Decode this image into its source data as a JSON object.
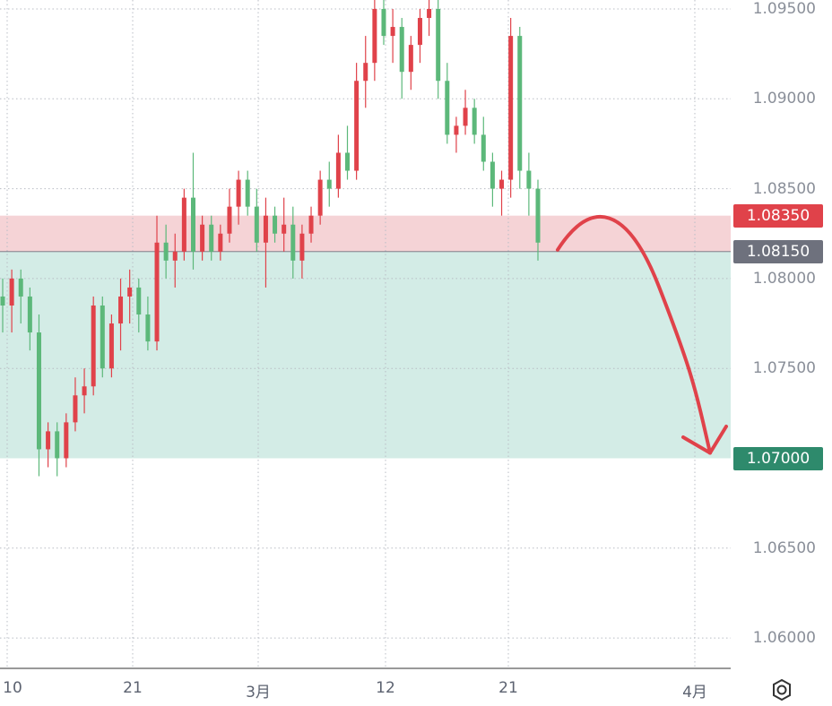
{
  "chart_data": {
    "type": "candlestick",
    "y_axis": {
      "ticks": [
        "1.09500",
        "1.09000",
        "1.08500",
        "1.08000",
        "1.07500",
        "1.06500",
        "1.06000"
      ],
      "tick_values": [
        1.095,
        1.09,
        1.085,
        1.08,
        1.075,
        1.065,
        1.06
      ],
      "range": [
        1.0585,
        1.0962
      ]
    },
    "x_axis": {
      "ticks": [
        "10",
        "21",
        "3月",
        "12",
        "21",
        "4月"
      ]
    },
    "zones": [
      {
        "name": "resistance",
        "from": 1.0815,
        "to": 1.0835,
        "color": "#f5d3d6"
      },
      {
        "name": "target",
        "from": 1.07,
        "to": 1.0815,
        "color": "#d3ece6"
      }
    ],
    "price_labels": [
      {
        "text": "1.08350",
        "value": 1.0835,
        "color": "#e0424a"
      },
      {
        "text": "1.08150",
        "value": 1.0815,
        "color": "#6e717d"
      },
      {
        "text": "1.07000",
        "value": 1.07,
        "color": "#2e8a6c"
      }
    ],
    "candles": [
      [
        1.079,
        1.08,
        1.077,
        1.0785
      ],
      [
        1.0785,
        1.0805,
        1.077,
        1.08
      ],
      [
        1.08,
        1.0805,
        1.0775,
        1.079
      ],
      [
        1.079,
        1.0795,
        1.076,
        1.077
      ],
      [
        1.077,
        1.078,
        1.069,
        1.0705
      ],
      [
        1.0705,
        1.072,
        1.0695,
        1.0715
      ],
      [
        1.0715,
        1.072,
        1.069,
        1.07
      ],
      [
        1.07,
        1.0725,
        1.0695,
        1.072
      ],
      [
        1.072,
        1.0745,
        1.0715,
        1.0735
      ],
      [
        1.0735,
        1.075,
        1.0725,
        1.074
      ],
      [
        1.074,
        1.079,
        1.0735,
        1.0785
      ],
      [
        1.0785,
        1.079,
        1.0745,
        1.075
      ],
      [
        1.075,
        1.078,
        1.0745,
        1.0775
      ],
      [
        1.0775,
        1.08,
        1.076,
        1.079
      ],
      [
        1.079,
        1.0805,
        1.0775,
        1.0795
      ],
      [
        1.0795,
        1.08,
        1.077,
        1.078
      ],
      [
        1.078,
        1.079,
        1.076,
        1.0765
      ],
      [
        1.0765,
        1.0835,
        1.076,
        1.082
      ],
      [
        1.082,
        1.083,
        1.08,
        1.081
      ],
      [
        1.081,
        1.0825,
        1.0795,
        1.0815
      ],
      [
        1.0815,
        1.085,
        1.081,
        1.0845
      ],
      [
        1.0845,
        1.087,
        1.0805,
        1.0815
      ],
      [
        1.0815,
        1.0835,
        1.081,
        1.083
      ],
      [
        1.083,
        1.0835,
        1.081,
        1.0815
      ],
      [
        1.0815,
        1.083,
        1.081,
        1.0825
      ],
      [
        1.0825,
        1.085,
        1.082,
        1.084
      ],
      [
        1.084,
        1.086,
        1.083,
        1.0855
      ],
      [
        1.0855,
        1.086,
        1.0835,
        1.084
      ],
      [
        1.084,
        1.085,
        1.0815,
        1.082
      ],
      [
        1.082,
        1.0845,
        1.0795,
        1.0835
      ],
      [
        1.0835,
        1.084,
        1.082,
        1.0825
      ],
      [
        1.0825,
        1.0845,
        1.0815,
        1.083
      ],
      [
        1.083,
        1.084,
        1.08,
        1.081
      ],
      [
        1.081,
        1.083,
        1.08,
        1.0825
      ],
      [
        1.0825,
        1.084,
        1.082,
        1.0835
      ],
      [
        1.0835,
        1.086,
        1.083,
        1.0855
      ],
      [
        1.0855,
        1.0865,
        1.084,
        1.085
      ],
      [
        1.085,
        1.088,
        1.0845,
        1.087
      ],
      [
        1.087,
        1.0885,
        1.0855,
        1.086
      ],
      [
        1.086,
        1.092,
        1.0855,
        1.091
      ],
      [
        1.091,
        1.0935,
        1.0895,
        1.092
      ],
      [
        1.092,
        1.096,
        1.091,
        1.095
      ],
      [
        1.095,
        1.0965,
        1.093,
        1.0935
      ],
      [
        1.0935,
        1.095,
        1.092,
        1.094
      ],
      [
        1.094,
        1.0945,
        1.09,
        1.0915
      ],
      [
        1.0915,
        1.0935,
        1.0905,
        1.093
      ],
      [
        1.093,
        1.095,
        1.092,
        1.0945
      ],
      [
        1.0945,
        1.096,
        1.0935,
        1.095
      ],
      [
        1.095,
        1.0955,
        1.09,
        1.091
      ],
      [
        1.091,
        1.092,
        1.0875,
        1.088
      ],
      [
        1.088,
        1.089,
        1.087,
        1.0885
      ],
      [
        1.0885,
        1.0905,
        1.088,
        1.0895
      ],
      [
        1.0895,
        1.09,
        1.0875,
        1.088
      ],
      [
        1.088,
        1.089,
        1.086,
        1.0865
      ],
      [
        1.0865,
        1.087,
        1.084,
        1.085
      ],
      [
        1.085,
        1.086,
        1.0835,
        1.0855
      ],
      [
        1.0855,
        1.0945,
        1.0845,
        1.0935
      ],
      [
        1.0935,
        1.094,
        1.085,
        1.086
      ],
      [
        1.086,
        1.087,
        1.0835,
        1.085
      ],
      [
        1.085,
        1.0855,
        1.081,
        1.082
      ]
    ],
    "up_color": "#e0424a",
    "down_color": "#5cb87a",
    "grid": true,
    "annotation": {
      "type": "curved-arrow",
      "color": "#e0424a",
      "from": 1.0815,
      "to": 1.07
    }
  }
}
